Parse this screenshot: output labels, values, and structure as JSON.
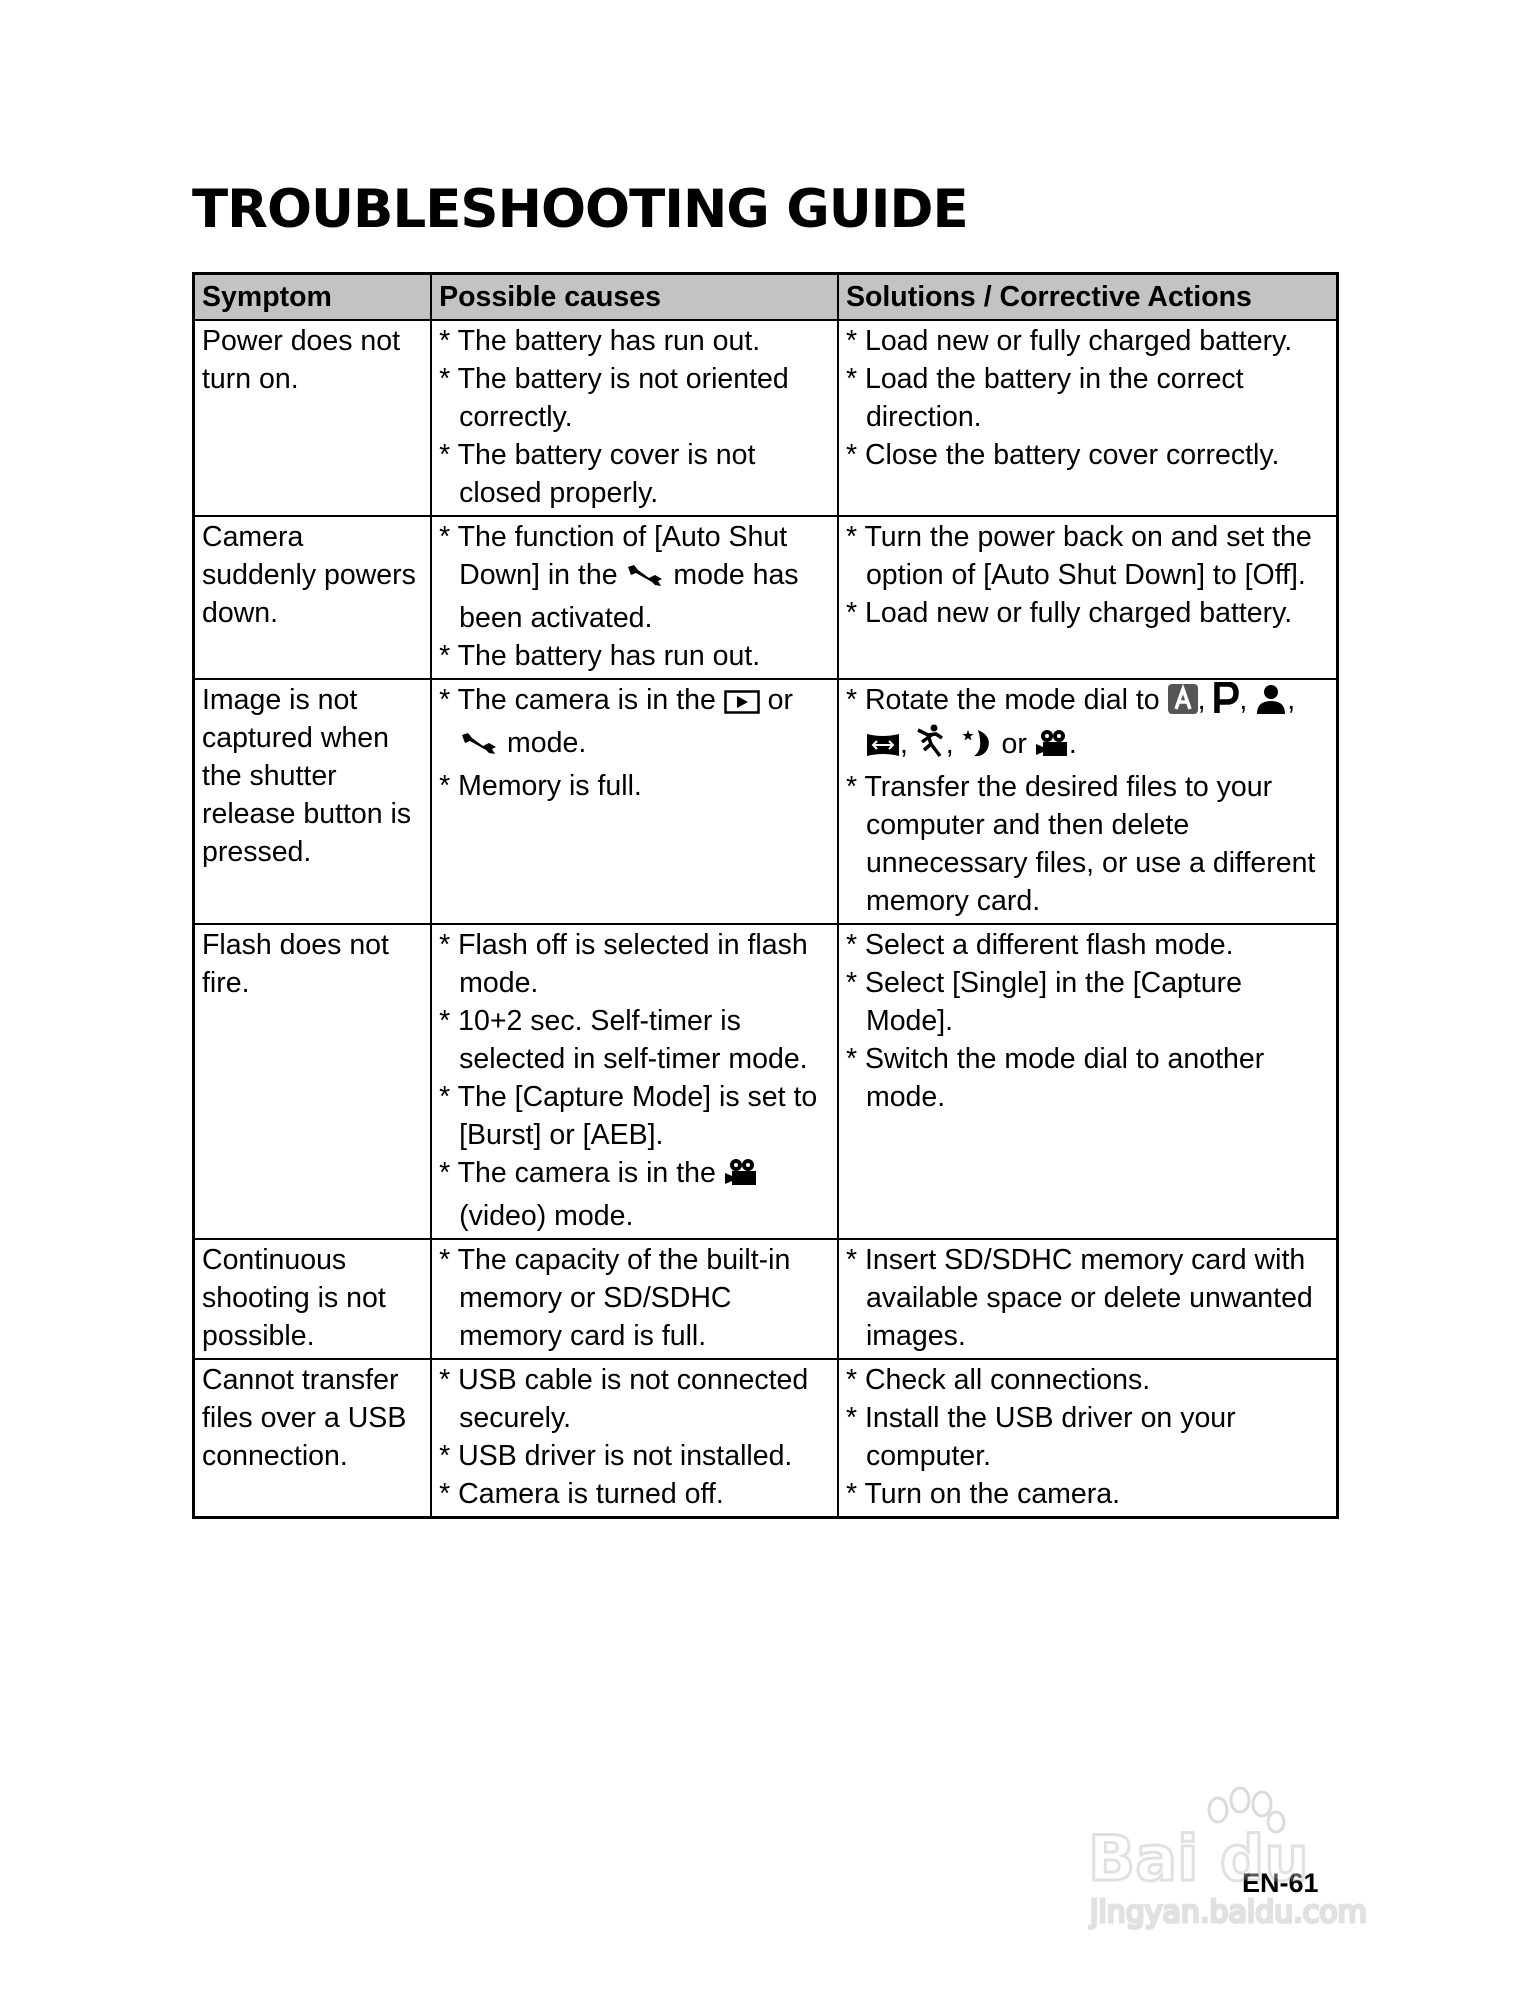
{
  "title": "TROUBLESHOOTING GUIDE",
  "table": {
    "headers": [
      "Symptom",
      "Possible causes",
      "Solutions / Corrective Actions"
    ],
    "rows": [
      {
        "symptom": "Power does not turn on.",
        "causes": [
          [
            {
              "t": "* The battery has run out."
            }
          ],
          [
            {
              "t": "* The battery is not oriented correctly."
            }
          ],
          [
            {
              "t": "* The battery cover is not closed properly."
            }
          ]
        ],
        "solutions": [
          [
            {
              "t": "* Load new or fully charged battery."
            }
          ],
          [
            {
              "t": "* Load the battery in the correct direction."
            }
          ],
          [
            {
              "t": "* Close the battery cover correctly."
            }
          ]
        ]
      },
      {
        "symptom": "Camera suddenly powers down.",
        "causes": [
          [
            {
              "t": "* The function of [Auto Shut Down] in the "
            },
            {
              "icon": "wrench"
            },
            {
              "t": " mode has been activated."
            }
          ],
          [
            {
              "t": "* The battery has run out."
            }
          ]
        ],
        "solutions": [
          [
            {
              "t": "* Turn the power back on and set the option of [Auto Shut Down] to [Off]."
            }
          ],
          [
            {
              "t": "* Load new or fully charged battery."
            }
          ]
        ]
      },
      {
        "symptom": "Image is not captured when the shutter release button is pressed.",
        "causes": [
          [
            {
              "t": "* The camera is in the "
            },
            {
              "icon": "playback"
            },
            {
              "t": " or "
            },
            {
              "icon": "wrench"
            },
            {
              "t": " mode."
            }
          ],
          [
            {
              "t": "* Memory is full."
            }
          ]
        ],
        "solutions": [
          [
            {
              "t": "* Rotate the mode dial to "
            },
            {
              "icon": "auto"
            },
            {
              "t": ", "
            },
            {
              "icon": "program"
            },
            {
              "t": ", "
            },
            {
              "icon": "portrait"
            },
            {
              "t": ", "
            },
            {
              "icon": "panorama"
            },
            {
              "t": ", "
            },
            {
              "icon": "sports"
            },
            {
              "t": ", "
            },
            {
              "icon": "night"
            },
            {
              "t": " or "
            },
            {
              "icon": "video"
            },
            {
              "t": "."
            }
          ],
          [
            {
              "t": "* Transfer the desired files to your computer and then delete unnecessary files, or use a different memory card."
            }
          ]
        ]
      },
      {
        "symptom": "Flash does not fire.",
        "causes": [
          [
            {
              "t": "* Flash off is selected in flash mode."
            }
          ],
          [
            {
              "t": "* 10+2 sec. Self-timer is selected in self-timer mode."
            }
          ],
          [
            {
              "t": "* The [Capture Mode] is set to [Burst] or [AEB]."
            }
          ],
          [
            {
              "t": "* The camera is in the "
            },
            {
              "icon": "video"
            },
            {
              "t": " (video) mode."
            }
          ]
        ],
        "solutions": [
          [
            {
              "t": "* Select a different flash mode."
            }
          ],
          [
            {
              "t": "* Select [Single] in the [Capture Mode]."
            }
          ],
          [
            {
              "t": "* Switch the mode dial to another mode."
            }
          ]
        ]
      },
      {
        "symptom": "Continuous shooting is not possible.",
        "causes": [
          [
            {
              "t": "* The capacity of the built-in memory or SD/SDHC memory card is full."
            }
          ]
        ],
        "solutions": [
          [
            {
              "t": "* Insert SD/SDHC memory card with available  space or delete unwanted images."
            }
          ]
        ]
      },
      {
        "symptom": "Cannot transfer files over a USB connection.",
        "causes": [
          [
            {
              "t": "* USB cable is not connected securely."
            }
          ],
          [
            {
              "t": "* USB driver is not installed."
            }
          ],
          [
            {
              "t": "* Camera is turned off."
            }
          ]
        ],
        "solutions": [
          [
            {
              "t": "* Check all connections."
            }
          ],
          [
            {
              "t": "* Install the USB driver on your computer."
            }
          ],
          [
            {
              "t": "* Turn on the camera."
            }
          ]
        ]
      }
    ]
  },
  "page_number": "EN-61",
  "watermark": "Baidu经验 jingyan.baidu.com",
  "colors": {
    "header_bg": "#c3c3c3",
    "border": "#000000"
  }
}
